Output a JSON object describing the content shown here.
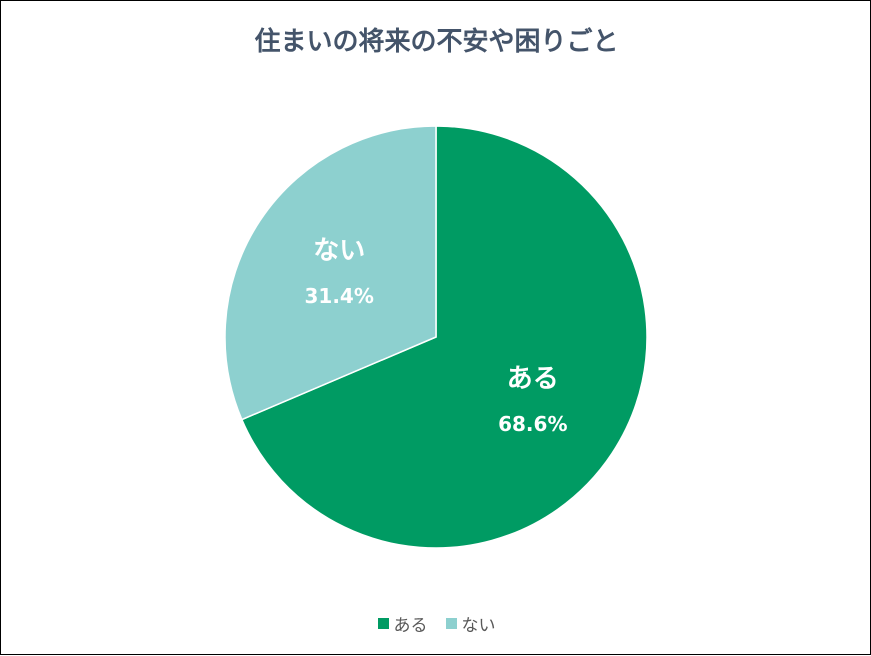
{
  "chart_data": {
    "type": "pie",
    "title": "住まいの将来の不安や困りごと",
    "categories": [
      "ある",
      "ない"
    ],
    "values": [
      68.6,
      31.4
    ],
    "data_labels": [
      "68.6%",
      "31.4%"
    ],
    "colors": [
      "#009b63",
      "#8dd0cf"
    ],
    "start_angle": "12 o'clock, clockwise",
    "legend_position": "bottom"
  }
}
